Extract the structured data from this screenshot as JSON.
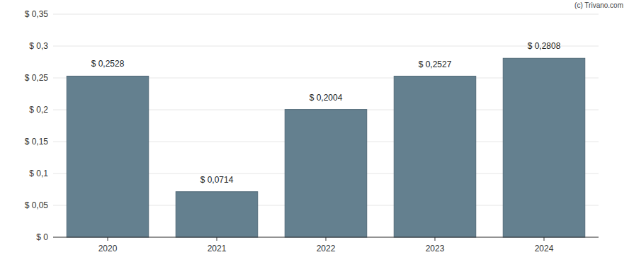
{
  "chart_data": {
    "type": "bar",
    "annotations": [
      "(c) Trivano.com"
    ],
    "categories": [
      "2020",
      "2021",
      "2022",
      "2023",
      "2024"
    ],
    "values": [
      0.2528,
      0.0714,
      0.2004,
      0.2527,
      0.2808
    ],
    "value_labels": [
      "$ 0,2528",
      "$ 0,0714",
      "$ 0,2004",
      "$ 0,2527",
      "$ 0,2808"
    ],
    "color": "#64808f",
    "ylim": [
      0,
      0.35
    ],
    "yticks": [
      {
        "value": 0,
        "label": "$ 0"
      },
      {
        "value": 0.05,
        "label": "$ 0,05"
      },
      {
        "value": 0.1,
        "label": "$ 0,1"
      },
      {
        "value": 0.15,
        "label": "$ 0,15"
      },
      {
        "value": 0.2,
        "label": "$ 0,2"
      },
      {
        "value": 0.25,
        "label": "$ 0,25"
      },
      {
        "value": 0.3,
        "label": "$ 0,3"
      },
      {
        "value": 0.35,
        "label": "$ 0,35"
      }
    ],
    "grid": true,
    "data_labels": true
  }
}
